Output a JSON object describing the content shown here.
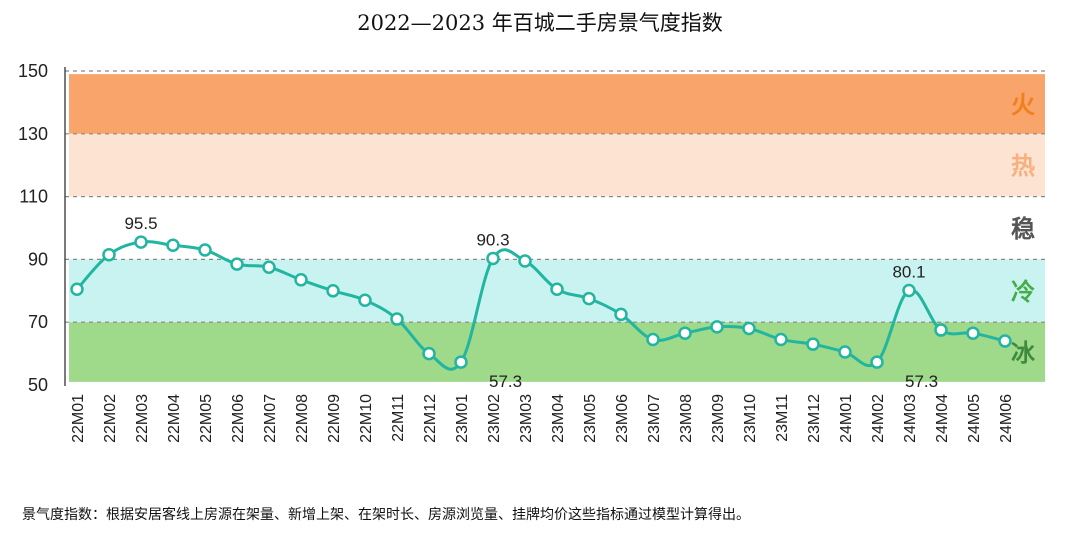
{
  "chart_data": {
    "type": "line",
    "title": "2022—2023 年百城二手房景气度指数",
    "ylim": [
      50,
      150
    ],
    "yticks": [
      "150",
      "130",
      "110",
      "90",
      "70",
      "50"
    ],
    "categories": [
      "22M01",
      "22M02",
      "22M03",
      "22M04",
      "22M05",
      "22M06",
      "22M07",
      "22M08",
      "22M09",
      "22M10",
      "22M11",
      "22M12",
      "23M01",
      "23M02",
      "23M03",
      "23M04",
      "23M05",
      "23M06",
      "23M07",
      "23M08",
      "23M09",
      "23M10",
      "23M11",
      "23M12",
      "24M01",
      "24M02",
      "24M03",
      "24M04",
      "24M05",
      "24M06"
    ],
    "series": [
      {
        "name": "百城二手房景气度指数",
        "values": [
          80.5,
          91.5,
          95.5,
          94.5,
          93.0,
          88.5,
          87.5,
          83.5,
          80.0,
          77.0,
          71.0,
          60.0,
          57.3,
          90.3,
          89.5,
          80.5,
          77.5,
          72.5,
          64.5,
          66.5,
          68.5,
          68.0,
          64.5,
          63.0,
          60.5,
          57.3,
          80.1,
          67.5,
          66.5,
          64.0
        ]
      }
    ],
    "annotations": [
      {
        "index": 2,
        "text": "95.5"
      },
      {
        "index": 12,
        "text": "57.3"
      },
      {
        "index": 13,
        "text": "90.3"
      },
      {
        "index": 25,
        "text": "57.3"
      },
      {
        "index": 26,
        "text": "80.1"
      }
    ],
    "zones": [
      {
        "label": "火",
        "from": 130,
        "to": 149,
        "color": "#f8a46b",
        "text_color": "#f07f1c"
      },
      {
        "label": "热",
        "from": 110,
        "to": 130,
        "color": "#fde3d2",
        "text_color": "#f9b081"
      },
      {
        "label": "稳",
        "from": 90,
        "to": 110,
        "color": "#ffffff",
        "text_color": "#555555"
      },
      {
        "label": "冷",
        "from": 70,
        "to": 90,
        "color": "#c9f3f1",
        "text_color": "#45ad45"
      },
      {
        "label": "冰",
        "from": 51,
        "to": 70,
        "color": "#9fd98a",
        "text_color": "#3d8a3d"
      }
    ],
    "line_color": "#22b5a0",
    "footnote": "景气度指数：根据安居客线上房源在架量、新增上架、在架时长、房源浏览量、挂牌均价这些指标通过模型计算得出。"
  }
}
